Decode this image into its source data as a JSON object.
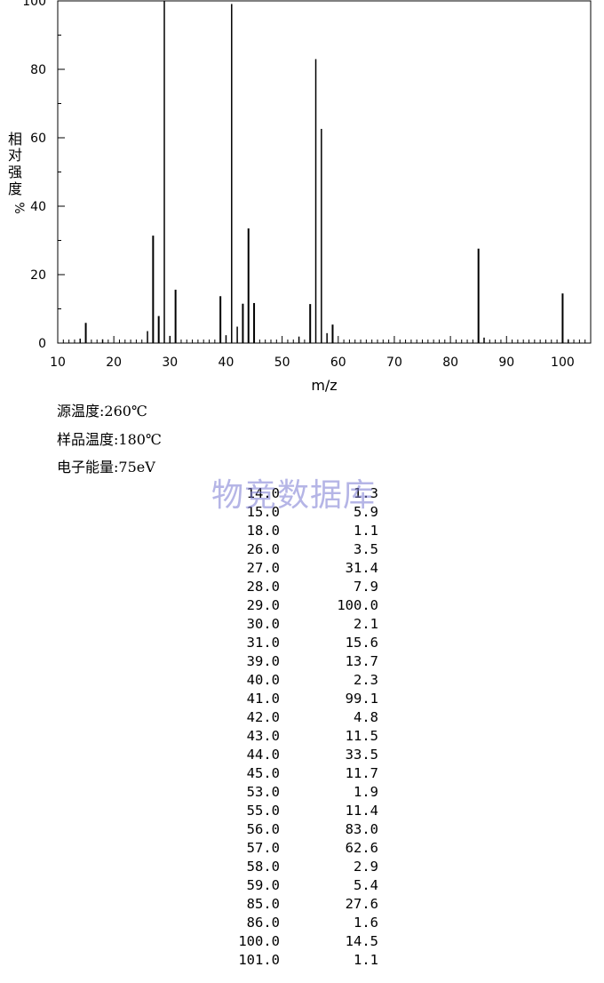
{
  "chart_data": {
    "type": "bar",
    "xlabel": "m/z",
    "ylabel": "相对强度 %",
    "xlim": [
      10,
      105
    ],
    "ylim": [
      0,
      100
    ],
    "x_ticks": [
      "10",
      "20",
      "30",
      "40",
      "50",
      "60",
      "70",
      "80",
      "90",
      "100"
    ],
    "y_ticks": [
      "0",
      "20",
      "40",
      "60",
      "80",
      "100"
    ],
    "grid": false,
    "peaks": [
      {
        "mz": 14.0,
        "intensity": 1.3
      },
      {
        "mz": 15.0,
        "intensity": 5.9
      },
      {
        "mz": 18.0,
        "intensity": 1.1
      },
      {
        "mz": 26.0,
        "intensity": 3.5
      },
      {
        "mz": 27.0,
        "intensity": 31.4
      },
      {
        "mz": 28.0,
        "intensity": 7.9
      },
      {
        "mz": 29.0,
        "intensity": 100.0
      },
      {
        "mz": 30.0,
        "intensity": 2.1
      },
      {
        "mz": 31.0,
        "intensity": 15.6
      },
      {
        "mz": 39.0,
        "intensity": 13.7
      },
      {
        "mz": 40.0,
        "intensity": 2.3
      },
      {
        "mz": 41.0,
        "intensity": 99.1
      },
      {
        "mz": 42.0,
        "intensity": 4.8
      },
      {
        "mz": 43.0,
        "intensity": 11.5
      },
      {
        "mz": 44.0,
        "intensity": 33.5
      },
      {
        "mz": 45.0,
        "intensity": 11.7
      },
      {
        "mz": 53.0,
        "intensity": 1.9
      },
      {
        "mz": 55.0,
        "intensity": 11.4
      },
      {
        "mz": 56.0,
        "intensity": 83.0
      },
      {
        "mz": 57.0,
        "intensity": 62.6
      },
      {
        "mz": 58.0,
        "intensity": 2.9
      },
      {
        "mz": 59.0,
        "intensity": 5.4
      },
      {
        "mz": 85.0,
        "intensity": 27.6
      },
      {
        "mz": 86.0,
        "intensity": 1.6
      },
      {
        "mz": 100.0,
        "intensity": 14.5
      },
      {
        "mz": 101.0,
        "intensity": 1.1
      }
    ]
  },
  "conditions": {
    "source_temp": "源温度:260℃",
    "sample_temp": "样品温度:180℃",
    "electron_energy": "电子能量:75eV"
  },
  "watermark": "物竞数据库",
  "table_rows": [
    [
      "14.0",
      "1.3"
    ],
    [
      "15.0",
      "5.9"
    ],
    [
      "18.0",
      "1.1"
    ],
    [
      "26.0",
      "3.5"
    ],
    [
      "27.0",
      "31.4"
    ],
    [
      "28.0",
      "7.9"
    ],
    [
      "29.0",
      "100.0"
    ],
    [
      "30.0",
      "2.1"
    ],
    [
      "31.0",
      "15.6"
    ],
    [
      "39.0",
      "13.7"
    ],
    [
      "40.0",
      "2.3"
    ],
    [
      "41.0",
      "99.1"
    ],
    [
      "42.0",
      "4.8"
    ],
    [
      "43.0",
      "11.5"
    ],
    [
      "44.0",
      "33.5"
    ],
    [
      "45.0",
      "11.7"
    ],
    [
      "53.0",
      "1.9"
    ],
    [
      "55.0",
      "11.4"
    ],
    [
      "56.0",
      "83.0"
    ],
    [
      "57.0",
      "62.6"
    ],
    [
      "58.0",
      "2.9"
    ],
    [
      "59.0",
      "5.4"
    ],
    [
      "85.0",
      "27.6"
    ],
    [
      "86.0",
      "1.6"
    ],
    [
      "100.0",
      "14.5"
    ],
    [
      "101.0",
      "1.1"
    ]
  ]
}
